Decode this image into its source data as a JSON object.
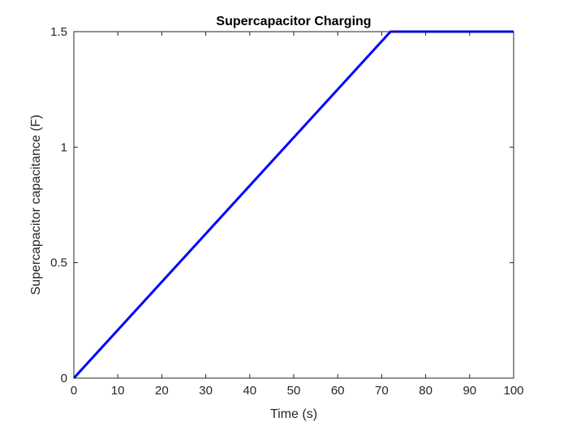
{
  "chart_data": {
    "type": "line",
    "title": "Supercapacitor Charging",
    "xlabel": "Time (s)",
    "ylabel": "Supercapacitor capacitance (F)",
    "xlim": [
      0,
      100
    ],
    "ylim": [
      0,
      1.5
    ],
    "x_ticks": [
      0,
      10,
      20,
      30,
      40,
      50,
      60,
      70,
      80,
      90,
      100
    ],
    "x_tick_labels": [
      "0",
      "10",
      "20",
      "30",
      "40",
      "50",
      "60",
      "70",
      "80",
      "90",
      "100"
    ],
    "y_ticks": [
      0,
      0.5,
      1,
      1.5
    ],
    "y_tick_labels": [
      "0",
      "0.5",
      "1",
      "1.5"
    ],
    "grid": false,
    "legend": "none",
    "series": [
      {
        "color": "#0000ff",
        "x": [
          0,
          72,
          100
        ],
        "y": [
          0,
          1.5,
          1.5
        ]
      }
    ]
  }
}
